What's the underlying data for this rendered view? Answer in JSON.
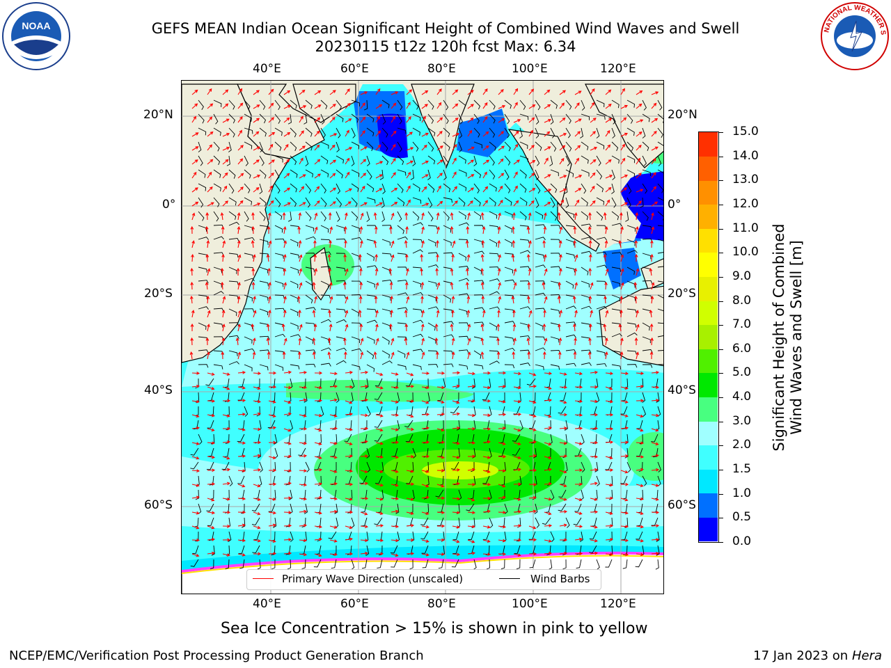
{
  "title": {
    "line1": "GEFS MEAN Indian Ocean Significant Height of Combined Wind Waves and Swell",
    "line2": "20230115 t12z 120h fcst   Max: 6.34"
  },
  "logos": {
    "left": {
      "name": "noaa-logo",
      "text": "NOAA"
    },
    "right": {
      "name": "nws-logo",
      "text": "NATIONAL WEATHER SERVICE"
    }
  },
  "axes": {
    "lon_ticks": [
      "40°E",
      "60°E",
      "80°E",
      "100°E",
      "120°E"
    ],
    "lat_ticks": [
      "20°N",
      "0°",
      "20°S",
      "40°S",
      "60°S"
    ]
  },
  "legend": {
    "wave_label": "Primary Wave Direction (unscaled)",
    "wind_label": "Wind Barbs",
    "wave_color": "#ff0000",
    "wind_color": "#000000"
  },
  "colorbar": {
    "label_line1": "Significant Height of Combined",
    "label_line2": "Wind Waves and Swell [m]",
    "ticks": [
      "15.0",
      "14.0",
      "13.0",
      "12.0",
      "11.0",
      "10.0",
      "9.0",
      "8.0",
      "7.0",
      "6.0",
      "5.0",
      "4.0",
      "3.0",
      "2.0",
      "1.5",
      "1.0",
      "0.5",
      "0.0"
    ],
    "colors": [
      "#0000ff",
      "#0070ff",
      "#00e8ff",
      "#40ffff",
      "#a0ffff",
      "#48ff80",
      "#00e800",
      "#50f000",
      "#a8f000",
      "#d0ff00",
      "#e8f000",
      "#ffff00",
      "#ffe000",
      "#ffb000",
      "#ff9000",
      "#ff6000",
      "#ff3000"
    ]
  },
  "subcaption": "Sea Ice Concentration > 15% is shown in pink to yellow",
  "footer": {
    "left": "NCEP/EMC/Verification Post Processing Product Generation Branch",
    "right_date": "17 Jan 2023 on ",
    "right_host": "Hera"
  }
}
